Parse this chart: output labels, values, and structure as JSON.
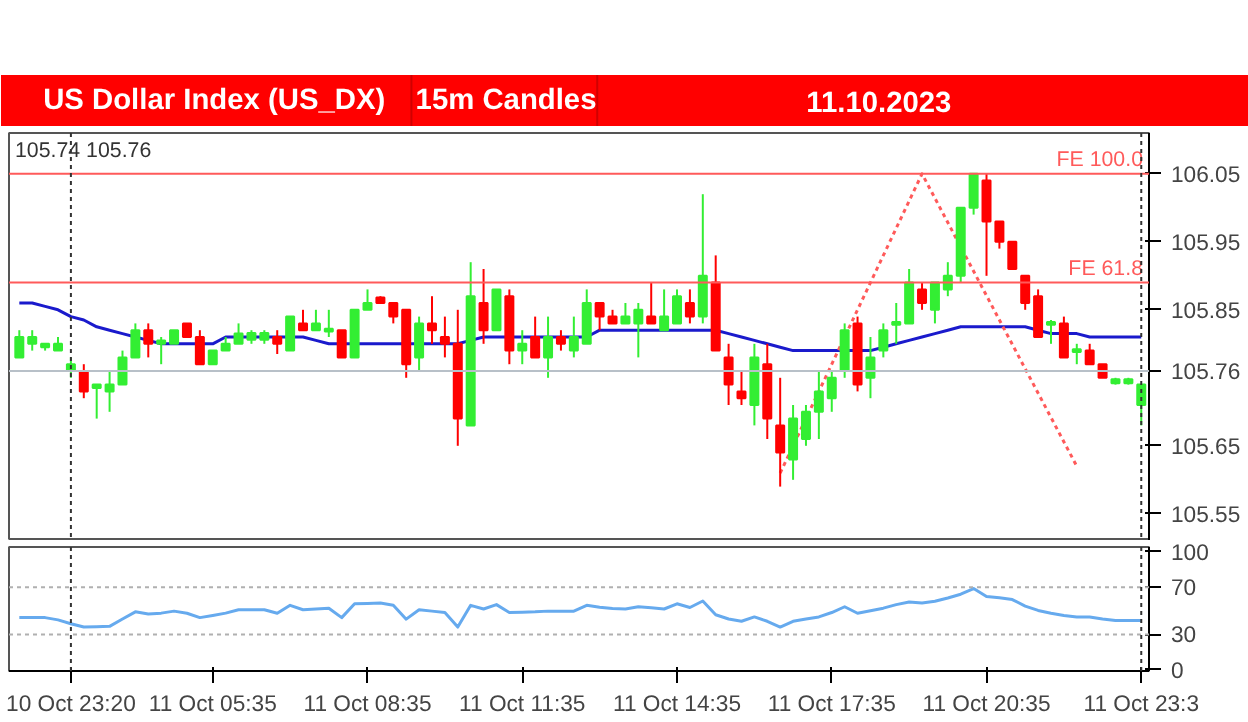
{
  "chart_data": [
    {
      "type": "candlestick",
      "title": "US Dollar Index (US_DX)",
      "subtitle": "15m Candles",
      "annotations": [
        "11.10.2023",
        "105.74 105.76"
      ],
      "categories": [
        null,
        null,
        null,
        null,
        "10 Oct 23:20",
        null,
        null,
        null,
        null,
        null,
        null,
        null,
        null,
        null,
        null,
        "11 Oct 05:35",
        null,
        null,
        null,
        null,
        null,
        null,
        null,
        null,
        null,
        null,
        null,
        "11 Oct 08:35",
        null,
        null,
        null,
        null,
        null,
        null,
        null,
        null,
        null,
        null,
        null,
        "11 Oct 11:35",
        null,
        null,
        null,
        null,
        null,
        null,
        null,
        null,
        null,
        null,
        null,
        "11 Oct 14:35",
        null,
        null,
        null,
        null,
        null,
        null,
        null,
        null,
        null,
        null,
        null,
        "11 Oct 17:35",
        null,
        null,
        null,
        null,
        null,
        null,
        null,
        null,
        null,
        null,
        null,
        "11 Oct 20:35",
        null,
        null,
        null,
        null,
        null,
        null,
        null,
        null,
        null,
        null,
        null,
        "11 Oct 23:3"
      ],
      "ohlc": [
        [
          105.78,
          105.82,
          105.78,
          105.81
        ],
        [
          105.8,
          105.82,
          105.79,
          105.81
        ],
        [
          105.795,
          105.8,
          105.79,
          105.8
        ],
        [
          105.79,
          105.81,
          105.79,
          105.8
        ],
        [
          105.76,
          105.78,
          105.75,
          105.77
        ],
        [
          105.76,
          105.77,
          105.72,
          105.73
        ],
        [
          105.735,
          105.74,
          105.69,
          105.74
        ],
        [
          105.73,
          105.76,
          105.7,
          105.74
        ],
        [
          105.74,
          105.79,
          105.74,
          105.78
        ],
        [
          105.78,
          105.83,
          105.78,
          105.82
        ],
        [
          105.82,
          105.83,
          105.78,
          105.8
        ],
        [
          105.8,
          105.81,
          105.77,
          105.805
        ],
        [
          105.8,
          105.82,
          105.8,
          105.82
        ],
        [
          105.83,
          105.83,
          105.81,
          105.81
        ],
        [
          105.81,
          105.82,
          105.77,
          105.77
        ],
        [
          105.77,
          105.79,
          105.77,
          105.79
        ],
        [
          105.79,
          105.81,
          105.79,
          105.8
        ],
        [
          105.8,
          105.83,
          105.8,
          105.815
        ],
        [
          105.806,
          105.82,
          105.8,
          105.816
        ],
        [
          105.806,
          105.82,
          105.8,
          105.816
        ],
        [
          105.81,
          105.82,
          105.785,
          105.8
        ],
        [
          105.79,
          105.84,
          105.79,
          105.84
        ],
        [
          105.83,
          105.85,
          105.82,
          105.82
        ],
        [
          105.82,
          105.85,
          105.82,
          105.83
        ],
        [
          105.818,
          105.85,
          105.81,
          105.822
        ],
        [
          105.82,
          105.82,
          105.78,
          105.78
        ],
        [
          105.78,
          105.85,
          105.78,
          105.85
        ],
        [
          105.85,
          105.88,
          105.85,
          105.86
        ],
        [
          105.868,
          105.87,
          105.86,
          105.86
        ],
        [
          105.86,
          105.86,
          105.83,
          105.84
        ],
        [
          105.85,
          105.85,
          105.75,
          105.77
        ],
        [
          105.78,
          105.84,
          105.76,
          105.83
        ],
        [
          105.83,
          105.87,
          105.8,
          105.82
        ],
        [
          105.81,
          105.84,
          105.78,
          105.8
        ],
        [
          105.8,
          105.85,
          105.65,
          105.69
        ],
        [
          105.68,
          105.92,
          105.68,
          105.87
        ],
        [
          105.86,
          105.91,
          105.8,
          105.82
        ],
        [
          105.82,
          105.88,
          105.82,
          105.88
        ],
        [
          105.87,
          105.88,
          105.77,
          105.79
        ],
        [
          105.79,
          105.82,
          105.77,
          105.8
        ],
        [
          105.81,
          105.84,
          105.78,
          105.78
        ],
        [
          105.78,
          105.84,
          105.75,
          105.81
        ],
        [
          105.81,
          105.82,
          105.79,
          105.8
        ],
        [
          105.79,
          105.84,
          105.78,
          105.81
        ],
        [
          105.8,
          105.88,
          105.8,
          105.86
        ],
        [
          105.86,
          105.86,
          105.82,
          105.84
        ],
        [
          105.84,
          105.85,
          105.83,
          105.83
        ],
        [
          105.83,
          105.86,
          105.83,
          105.84
        ],
        [
          105.83,
          105.86,
          105.78,
          105.85
        ],
        [
          105.84,
          105.89,
          105.83,
          105.83
        ],
        [
          105.82,
          105.88,
          105.82,
          105.84
        ],
        [
          105.83,
          105.88,
          105.83,
          105.87
        ],
        [
          105.86,
          105.88,
          105.83,
          105.84
        ],
        [
          105.84,
          106.02,
          105.83,
          105.9
        ],
        [
          105.89,
          105.93,
          105.79,
          105.79
        ],
        [
          105.78,
          105.8,
          105.71,
          105.74
        ],
        [
          105.73,
          105.76,
          105.71,
          105.72
        ],
        [
          105.71,
          105.8,
          105.68,
          105.78
        ],
        [
          105.77,
          105.8,
          105.66,
          105.69
        ],
        [
          105.68,
          105.75,
          105.59,
          105.64
        ],
        [
          105.63,
          105.71,
          105.6,
          105.69
        ],
        [
          105.66,
          105.71,
          105.65,
          105.7
        ],
        [
          105.7,
          105.76,
          105.66,
          105.73
        ],
        [
          105.72,
          105.76,
          105.7,
          105.75
        ],
        [
          105.76,
          105.83,
          105.75,
          105.82
        ],
        [
          105.83,
          105.84,
          105.73,
          105.74
        ],
        [
          105.75,
          105.81,
          105.72,
          105.78
        ],
        [
          105.79,
          105.83,
          105.78,
          105.82
        ],
        [
          105.828,
          105.86,
          105.8,
          105.832
        ],
        [
          105.83,
          105.91,
          105.83,
          105.89
        ],
        [
          105.88,
          105.89,
          105.85,
          105.86
        ],
        [
          105.85,
          105.89,
          105.83,
          105.89
        ],
        [
          105.88,
          105.92,
          105.87,
          105.9
        ],
        [
          105.9,
          106.0,
          105.89,
          106.0
        ],
        [
          106.0,
          106.05,
          105.99,
          106.05
        ],
        [
          106.04,
          106.05,
          105.9,
          105.98
        ],
        [
          105.98,
          105.98,
          105.94,
          105.95
        ],
        [
          105.95,
          105.95,
          105.91,
          105.91
        ],
        [
          105.9,
          105.9,
          105.85,
          105.86
        ],
        [
          105.87,
          105.88,
          105.81,
          105.81
        ],
        [
          105.828,
          105.835,
          105.8,
          105.832
        ],
        [
          105.83,
          105.84,
          105.78,
          105.78
        ],
        [
          105.788,
          105.8,
          105.77,
          105.792
        ],
        [
          105.79,
          105.8,
          105.77,
          105.77
        ],
        [
          105.77,
          105.77,
          105.75,
          105.75
        ],
        [
          105.742,
          105.75,
          105.74,
          105.748
        ],
        [
          105.742,
          105.75,
          105.74,
          105.748
        ],
        [
          105.71,
          105.74,
          105.68,
          105.74
        ]
      ],
      "colors": [
        "#33ee33",
        "#33ee33",
        "#33ee33",
        "#33ee33",
        "#33ee33",
        "#ff0000",
        "#33ee33",
        "#33ee33",
        "#33ee33",
        "#33ee33",
        "#ff0000",
        "#33ee33",
        "#33ee33",
        "#ff0000",
        "#ff0000",
        "#33ee33",
        "#33ee33",
        "#33ee33",
        "#33ee33",
        "#33ee33",
        "#ff0000",
        "#33ee33",
        "#ff0000",
        "#33ee33",
        "#33ee33",
        "#ff0000",
        "#33ee33",
        "#33ee33",
        "#ff0000",
        "#ff0000",
        "#ff0000",
        "#33ee33",
        "#ff0000",
        "#ff0000",
        "#ff0000",
        "#33ee33",
        "#ff0000",
        "#33ee33",
        "#ff0000",
        "#33ee33",
        "#ff0000",
        "#33ee33",
        "#ff0000",
        "#33ee33",
        "#33ee33",
        "#ff0000",
        "#ff0000",
        "#33ee33",
        "#33ee33",
        "#ff0000",
        "#33ee33",
        "#33ee33",
        "#ff0000",
        "#33ee33",
        "#ff0000",
        "#ff0000",
        "#ff0000",
        "#33ee33",
        "#ff0000",
        "#ff0000",
        "#33ee33",
        "#33ee33",
        "#33ee33",
        "#33ee33",
        "#33ee33",
        "#ff0000",
        "#33ee33",
        "#33ee33",
        "#33ee33",
        "#33ee33",
        "#ff0000",
        "#33ee33",
        "#33ee33",
        "#33ee33",
        "#33ee33",
        "#ff0000",
        "#ff0000",
        "#ff0000",
        "#ff0000",
        "#ff0000",
        "#33ee33",
        "#ff0000",
        "#33ee33",
        "#ff0000",
        "#ff0000",
        "#33ee33",
        "#33ee33",
        "#33ee33"
      ],
      "series": [
        {
          "type": "line",
          "color": "#1a1acc",
          "values": [
            105.86,
            105.86,
            105.855,
            105.85,
            105.84,
            105.835,
            105.825,
            105.82,
            105.815,
            105.81,
            105.805,
            105.8,
            105.8,
            105.8,
            105.8,
            105.8,
            105.81,
            105.81,
            105.81,
            105.81,
            105.81,
            105.81,
            105.81,
            105.805,
            105.8,
            105.8,
            105.8,
            105.8,
            105.8,
            105.8,
            105.8,
            105.8,
            105.8,
            105.8,
            105.8,
            105.805,
            105.81,
            105.81,
            105.81,
            105.81,
            105.81,
            105.81,
            105.81,
            105.81,
            105.81,
            105.82,
            105.82,
            105.82,
            105.82,
            105.82,
            105.82,
            105.82,
            105.82,
            105.82,
            105.82,
            105.815,
            105.81,
            105.805,
            105.8,
            105.795,
            105.79,
            105.79,
            105.79,
            105.79,
            105.79,
            105.79,
            105.79,
            105.795,
            105.8,
            105.805,
            105.81,
            105.815,
            105.82,
            105.825,
            105.825,
            105.825,
            105.825,
            105.825,
            105.825,
            105.82,
            105.815,
            105.815,
            105.815,
            105.81,
            105.81,
            105.81,
            105.81,
            105.81
          ]
        },
        {
          "type": "line",
          "color": "#ff5a5a",
          "line_style": "dotted",
          "values": [
            null,
            null,
            null,
            null,
            null,
            null,
            null,
            null,
            null,
            null,
            null,
            null,
            null,
            null,
            null,
            null,
            null,
            null,
            null,
            null,
            null,
            null,
            null,
            null,
            null,
            null,
            null,
            null,
            null,
            null,
            null,
            null,
            null,
            null,
            null,
            null,
            null,
            null,
            null,
            null,
            null,
            null,
            null,
            null,
            null,
            null,
            null,
            null,
            null,
            null,
            null,
            null,
            null,
            null,
            null,
            null,
            null,
            null,
            null,
            105.61,
            null,
            null,
            null,
            null,
            null,
            null,
            null,
            null,
            null,
            null,
            106.05,
            null,
            null,
            null,
            null,
            null,
            null,
            null,
            null,
            null,
            null,
            null,
            105.62,
            null,
            null,
            null,
            null,
            null
          ]
        }
      ],
      "ylim": [
        105.51,
        106.11
      ],
      "yticks": [
        105.55,
        105.65,
        105.76,
        105.85,
        105.95,
        106.05
      ],
      "ref_lines": [
        {
          "axis": "y",
          "value": 106.05,
          "label": "FE 100.0",
          "color": "#ff5a5a"
        },
        {
          "axis": "y",
          "value": 105.89,
          "label": "FE 61.8",
          "color": "#ff5a5a"
        },
        {
          "axis": "y",
          "value": 105.76,
          "color": "#b8c0c8"
        },
        {
          "axis": "x",
          "value": "10 Oct 23:20",
          "color": "#333333",
          "line_style": "dotted"
        },
        {
          "axis": "x",
          "value": "11 Oct 23:3",
          "color": "#333333",
          "line_style": "dotted"
        }
      ],
      "tick_labels": "y",
      "grid": false
    },
    {
      "type": "line",
      "categories": [
        null,
        null,
        null,
        null,
        "10 Oct 23:20",
        null,
        null,
        null,
        null,
        null,
        null,
        null,
        null,
        null,
        null,
        "11 Oct 05:35",
        null,
        null,
        null,
        null,
        null,
        null,
        null,
        null,
        null,
        null,
        null,
        "11 Oct 08:35",
        null,
        null,
        null,
        null,
        null,
        null,
        null,
        null,
        null,
        null,
        null,
        "11 Oct 11:35",
        null,
        null,
        null,
        null,
        null,
        null,
        null,
        null,
        null,
        null,
        null,
        "11 Oct 14:35",
        null,
        null,
        null,
        null,
        null,
        null,
        null,
        null,
        null,
        null,
        null,
        "11 Oct 17:35",
        null,
        null,
        null,
        null,
        null,
        null,
        null,
        null,
        null,
        null,
        null,
        "11 Oct 20:35",
        null,
        null,
        null,
        null,
        null,
        null,
        null,
        null,
        null,
        null,
        null,
        "11 Oct 23:3"
      ],
      "series": [
        {
          "color": "#66aaee",
          "values": [
            44.2,
            44.2,
            44.2,
            42.3,
            39,
            36.2,
            36.5,
            36.8,
            43,
            49.1,
            47.2,
            48,
            49.7,
            47.9,
            44.2,
            46,
            48,
            50.9,
            50.9,
            50.9,
            47.9,
            54.6,
            50.9,
            51.5,
            52.2,
            44.2,
            55.9,
            56.2,
            56.5,
            54.6,
            42.9,
            50.9,
            49.7,
            48.5,
            36.2,
            54.6,
            51.5,
            55.2,
            48.5,
            48.8,
            49.1,
            49.7,
            49.7,
            49.7,
            54.6,
            53,
            52,
            51.5,
            53.4,
            52.5,
            51.5,
            55.9,
            52.8,
            58.3,
            46.6,
            43,
            41.1,
            44.8,
            41.1,
            36.2,
            41.1,
            43,
            44.8,
            48.5,
            53.4,
            47.9,
            50,
            52.2,
            55.2,
            57.5,
            56.5,
            58,
            60.8,
            64,
            68.8,
            62,
            61,
            59.5,
            54,
            50.3,
            47.9,
            46,
            44.8,
            44.8,
            43,
            41.7,
            41.7,
            41.7
          ]
        }
      ],
      "ylim": [
        -1,
        104
      ],
      "yticks": [
        0,
        30,
        70,
        100
      ],
      "ref_lines": [
        {
          "axis": "y",
          "value": 30,
          "color": "#b0b0b0",
          "line_style": "dotted"
        },
        {
          "axis": "y",
          "value": 70,
          "color": "#b0b0b0",
          "line_style": "dotted"
        },
        {
          "axis": "x",
          "value": "10 Oct 23:20",
          "color": "#333333",
          "line_style": "dotted"
        },
        {
          "axis": "x",
          "value": "11 Oct 23:3",
          "color": "#333333",
          "line_style": "dotted"
        }
      ],
      "grid": false
    }
  ]
}
